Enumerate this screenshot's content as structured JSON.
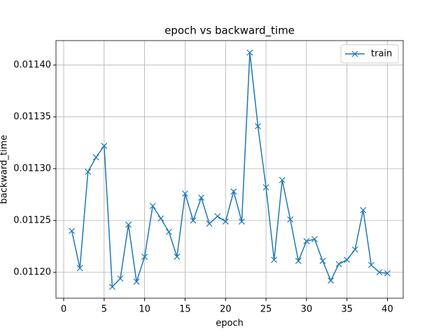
{
  "chart_data": {
    "type": "line",
    "title": "epoch vs backward_time",
    "x_label": "epoch",
    "y_label": "backward_time",
    "x": [
      1,
      2,
      3,
      4,
      5,
      6,
      7,
      8,
      9,
      10,
      11,
      12,
      13,
      14,
      15,
      16,
      17,
      18,
      19,
      20,
      21,
      22,
      23,
      24,
      25,
      26,
      27,
      28,
      29,
      30,
      31,
      32,
      33,
      34,
      35,
      36,
      37,
      38,
      39,
      40
    ],
    "series": [
      {
        "name": "train",
        "color": "#1f77b4",
        "values": [
          0.01124,
          0.011204,
          0.011297,
          0.011311,
          0.011322,
          0.011186,
          0.011194,
          0.011246,
          0.011191,
          0.011215,
          0.011264,
          0.011252,
          0.011239,
          0.011215,
          0.011276,
          0.01125,
          0.011272,
          0.011247,
          0.011254,
          0.011249,
          0.011278,
          0.011249,
          0.011412,
          0.011341,
          0.011282,
          0.011212,
          0.011289,
          0.011251,
          0.011211,
          0.01123,
          0.011232,
          0.011211,
          0.011192,
          0.011208,
          0.011212,
          0.011222,
          0.01126,
          0.011207,
          0.0112,
          0.011199
        ]
      }
    ],
    "xlim": [
      -0.95,
      41.95
    ],
    "xticks": [
      0,
      5,
      10,
      15,
      20,
      25,
      30,
      35,
      40
    ],
    "ylim": [
      0.011175,
      0.0114236
    ],
    "yticks": [
      {
        "value": 0.0112,
        "label": "0.01120"
      },
      {
        "value": 0.01125,
        "label": "0.01125"
      },
      {
        "value": 0.0113,
        "label": "0.01130"
      },
      {
        "value": 0.01135,
        "label": "0.01135"
      },
      {
        "value": 0.0114,
        "label": "0.01140"
      }
    ],
    "grid": true,
    "legend": "upper right",
    "marker": "x"
  }
}
